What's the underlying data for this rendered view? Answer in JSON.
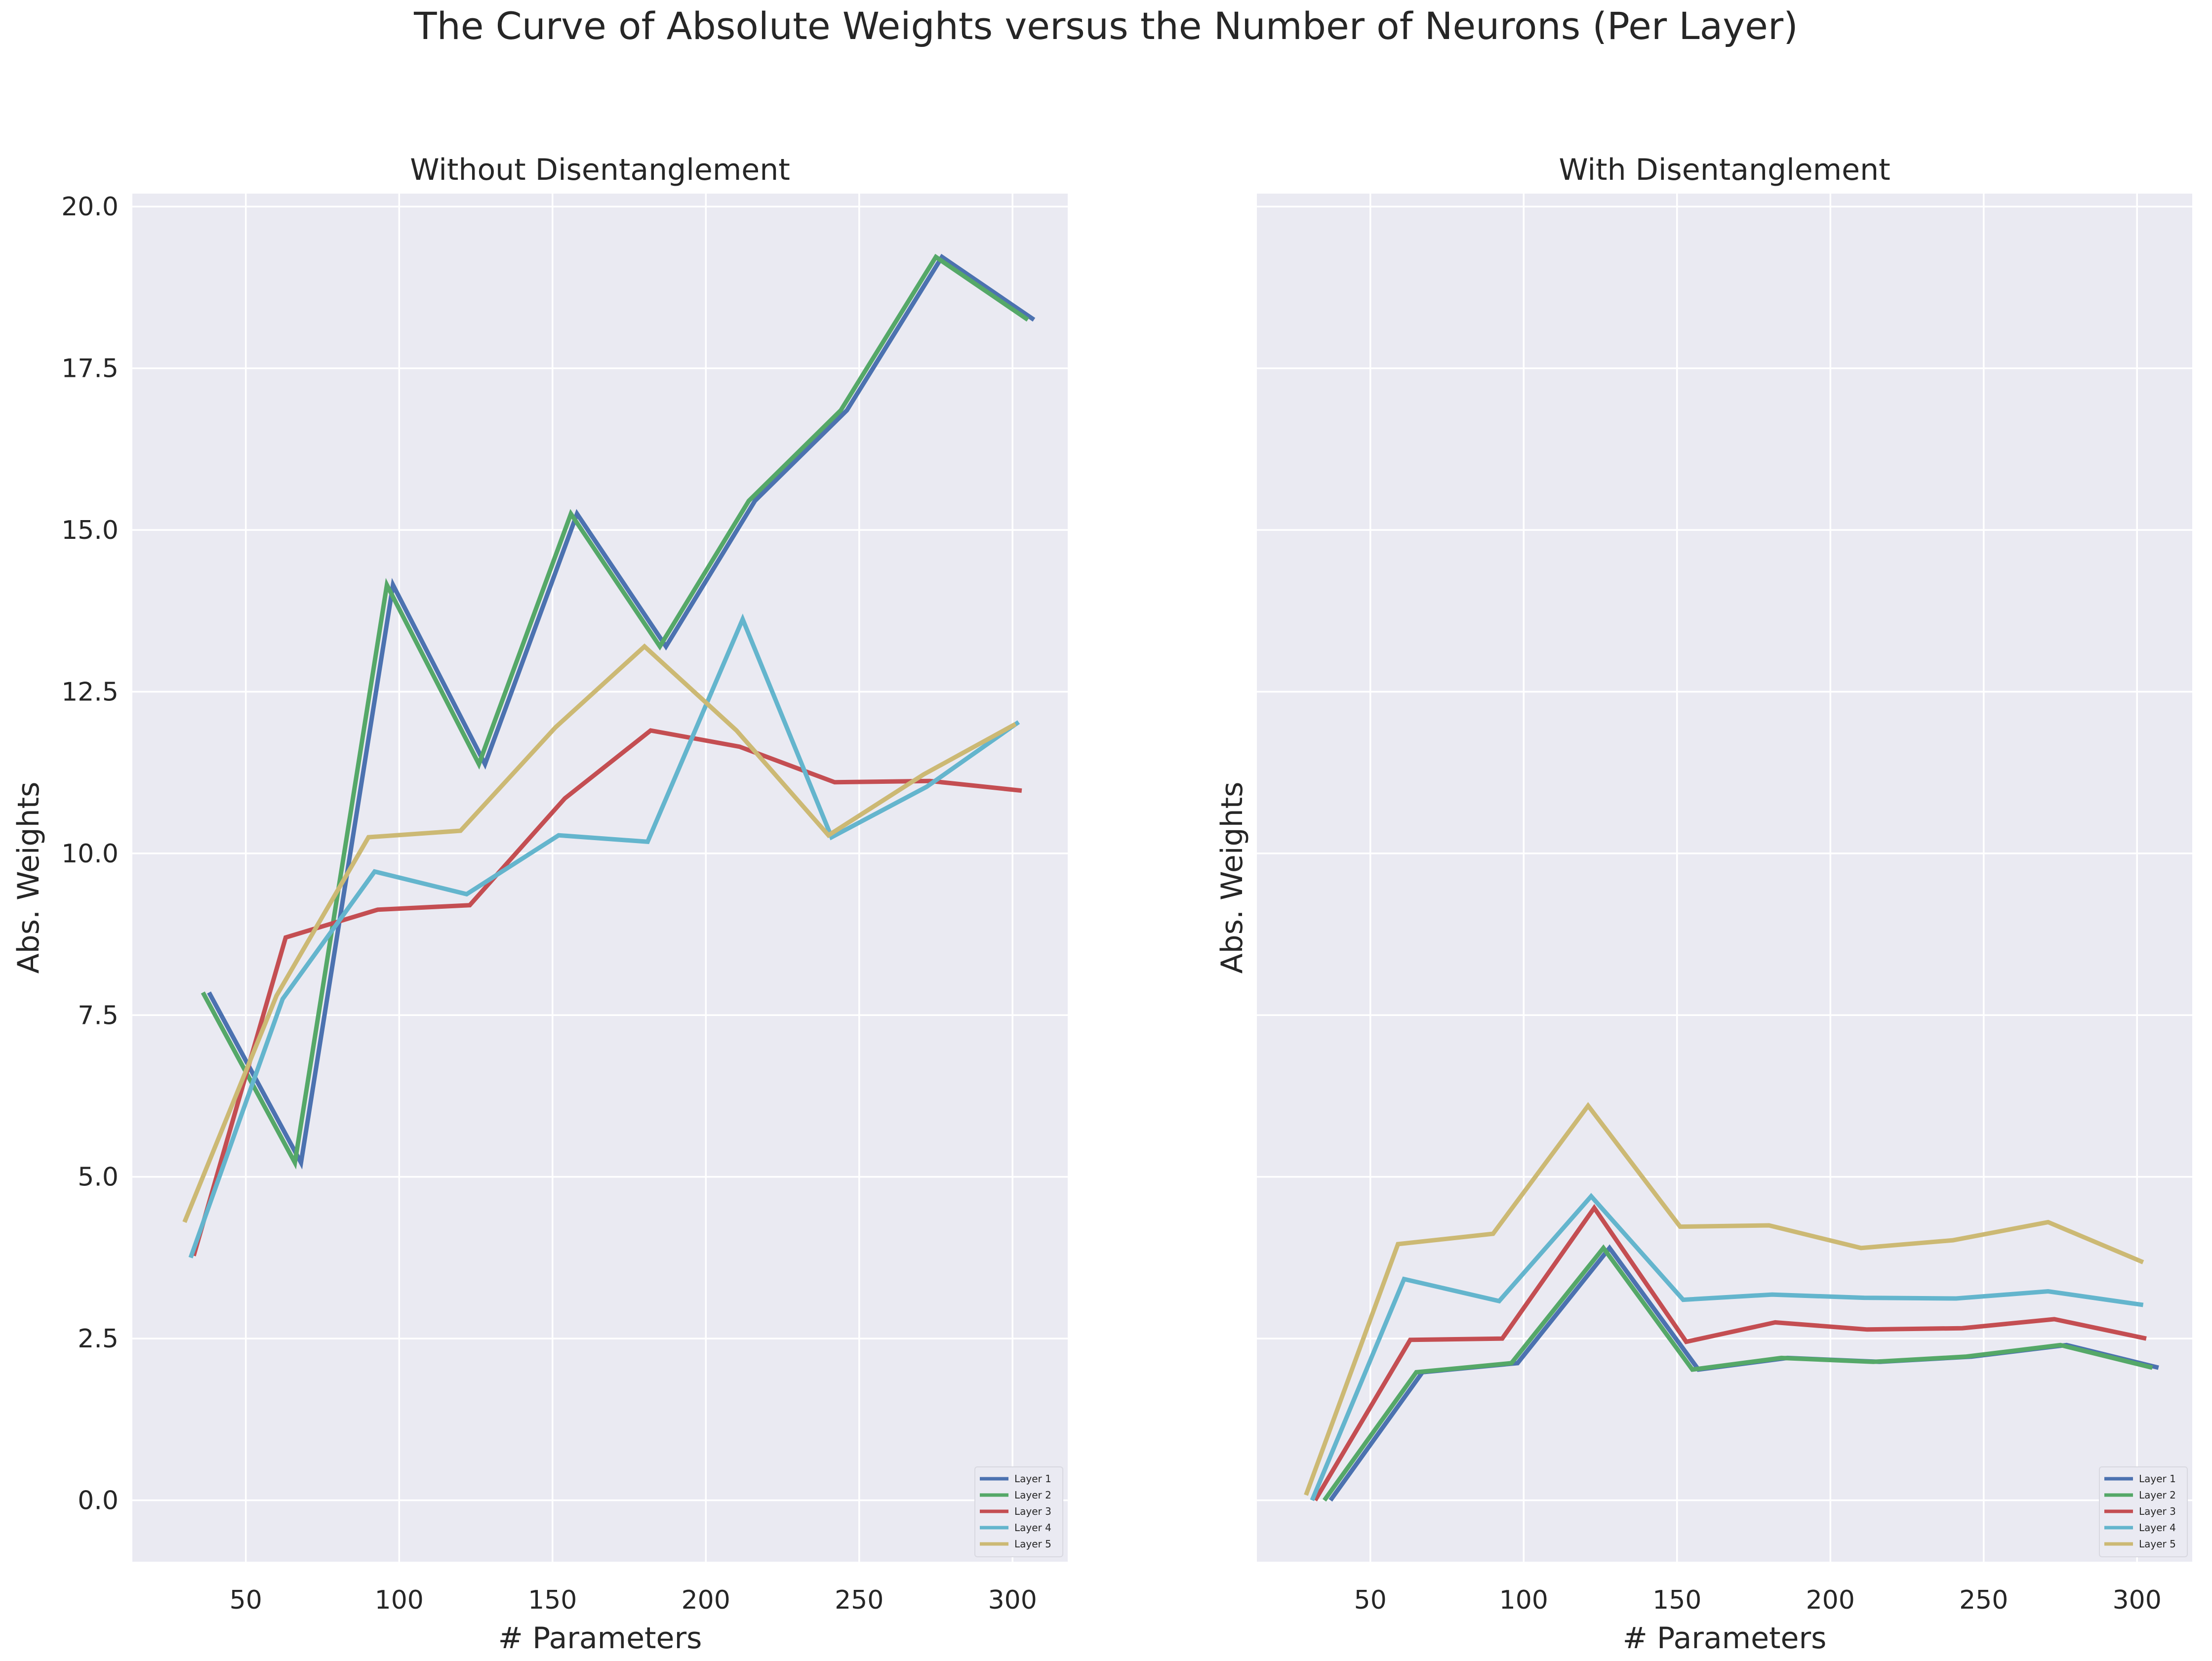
{
  "suptitle": "The Curve of Absolute Weights versus the Number of Neurons (Per Layer)",
  "colors": {
    "background": "#eaeaf2",
    "grid": "#ffffff",
    "layer1": "#4c72b0",
    "layer2": "#55a868",
    "layer3": "#c44e52",
    "layer4": "#64b5cd",
    "layer5": "#ccb974"
  },
  "chart_data": [
    {
      "type": "line",
      "title": "Without Disentanglement",
      "xlabel": "# Parameters",
      "ylabel": "Abs. Weights",
      "xlim": [
        13,
        318
      ],
      "ylim": [
        -0.95,
        20.2
      ],
      "xticks": [
        50,
        100,
        150,
        200,
        250,
        300
      ],
      "yticks": [
        "0.0",
        "2.5",
        "5.0",
        "7.5",
        "10.0",
        "12.5",
        "15.0",
        "17.5",
        "20.0"
      ],
      "grid": true,
      "legend": "lower-right",
      "series": [
        {
          "name": "Layer 1",
          "color": "#4c72b0",
          "x": [
            38,
            68,
            98,
            128,
            158,
            187,
            216,
            246,
            277,
            307
          ],
          "y": [
            7.85,
            5.22,
            14.15,
            11.38,
            15.25,
            13.2,
            15.45,
            16.85,
            19.22,
            18.25
          ]
        },
        {
          "name": "Layer 2",
          "color": "#55a868",
          "x": [
            36,
            66,
            96,
            126,
            156,
            185,
            214,
            244,
            275,
            305
          ],
          "y": [
            7.85,
            5.22,
            14.15,
            11.38,
            15.25,
            13.2,
            15.45,
            16.85,
            19.22,
            18.25
          ]
        },
        {
          "name": "Layer 3",
          "color": "#c44e52",
          "x": [
            33,
            63,
            93,
            123,
            154,
            182,
            211,
            242,
            273,
            303
          ],
          "y": [
            3.78,
            8.7,
            9.13,
            9.2,
            10.85,
            11.9,
            11.65,
            11.1,
            11.12,
            10.97
          ]
        },
        {
          "name": "Layer 4",
          "color": "#64b5cd",
          "x": [
            32,
            62,
            92,
            122,
            152,
            181,
            212,
            241,
            272,
            302
          ],
          "y": [
            3.75,
            7.75,
            9.72,
            9.37,
            10.28,
            10.18,
            13.62,
            10.25,
            11.03,
            12.03
          ]
        },
        {
          "name": "Layer 5",
          "color": "#ccb974",
          "x": [
            30,
            60,
            90,
            120,
            151,
            180,
            210,
            240,
            271,
            301
          ],
          "y": [
            4.3,
            7.8,
            10.25,
            10.35,
            11.95,
            13.2,
            11.9,
            10.28,
            11.22,
            12.0
          ]
        }
      ]
    },
    {
      "type": "line",
      "title": "With Disentanglement",
      "xlabel": "# Parameters",
      "ylabel": "Abs. Weights",
      "xlim": [
        13,
        318
      ],
      "ylim": [
        -0.95,
        20.2
      ],
      "xticks": [
        50,
        100,
        150,
        200,
        250,
        300
      ],
      "yticks": [],
      "grid": true,
      "legend": "lower-right",
      "series": [
        {
          "name": "Layer 1",
          "color": "#4c72b0",
          "x": [
            37,
            67,
            98,
            128,
            157,
            186,
            216,
            246,
            277,
            307
          ],
          "y": [
            0.0,
            1.98,
            2.12,
            3.9,
            2.02,
            2.2,
            2.14,
            2.22,
            2.4,
            2.05
          ]
        },
        {
          "name": "Layer 2",
          "color": "#55a868",
          "x": [
            35,
            65,
            96,
            126,
            155,
            184,
            214,
            244,
            275,
            305
          ],
          "y": [
            0.0,
            1.98,
            2.12,
            3.9,
            2.02,
            2.2,
            2.14,
            2.22,
            2.4,
            2.05
          ]
        },
        {
          "name": "Layer 3",
          "color": "#c44e52",
          "x": [
            32,
            63,
            93,
            123,
            153,
            182,
            212,
            243,
            273,
            303
          ],
          "y": [
            0.0,
            2.48,
            2.5,
            4.52,
            2.45,
            2.75,
            2.64,
            2.66,
            2.8,
            2.5
          ]
        },
        {
          "name": "Layer 4",
          "color": "#64b5cd",
          "x": [
            31,
            61,
            92,
            122,
            152,
            181,
            211,
            241,
            271,
            302
          ],
          "y": [
            0.0,
            3.42,
            3.08,
            4.7,
            3.1,
            3.18,
            3.13,
            3.12,
            3.23,
            3.02
          ]
        },
        {
          "name": "Layer 5",
          "color": "#ccb974",
          "x": [
            29,
            59,
            90,
            121,
            151,
            180,
            210,
            240,
            271,
            302
          ],
          "y": [
            0.08,
            3.96,
            4.12,
            6.1,
            4.23,
            4.25,
            3.9,
            4.02,
            4.3,
            3.68
          ]
        }
      ]
    }
  ]
}
